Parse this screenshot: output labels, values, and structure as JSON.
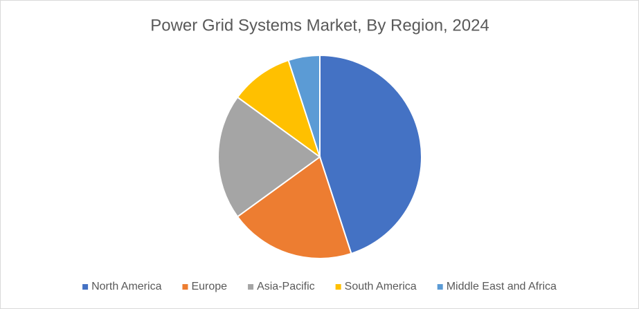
{
  "chart_data": {
    "type": "pie",
    "title": "Power Grid Systems Market, By Region, 2024",
    "categories": [
      "North America",
      "Europe",
      "Asia-Pacific",
      "South America",
      "Middle East and Africa"
    ],
    "values": [
      45,
      20,
      20,
      10,
      5
    ],
    "colors": [
      "#4472c4",
      "#ed7d31",
      "#a5a5a5",
      "#ffc000",
      "#5b9bd5"
    ],
    "legend": "bottom"
  }
}
